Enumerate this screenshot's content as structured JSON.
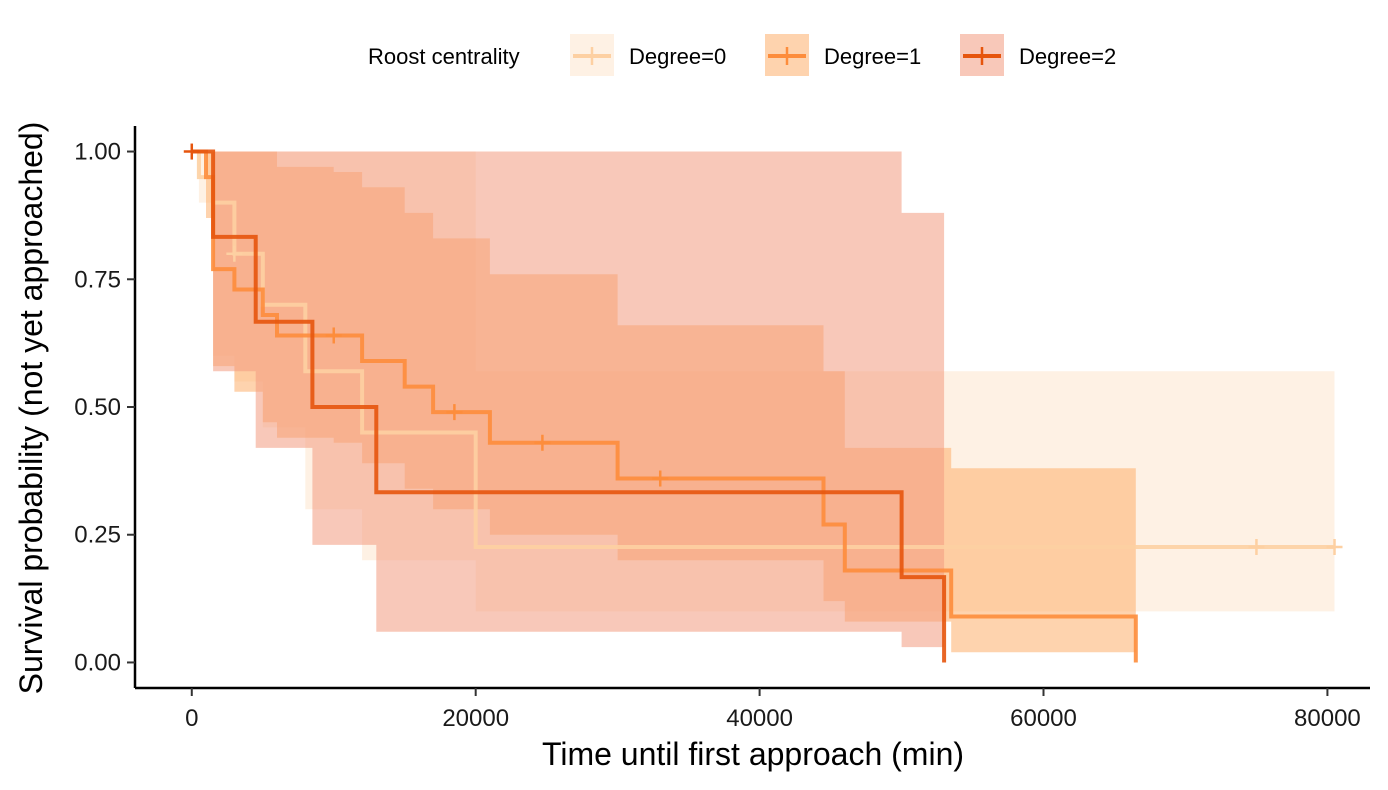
{
  "chart_data": {
    "type": "line",
    "subtype": "kaplan-meier survival curve with confidence bands",
    "xlabel": "Time until first approach (min)",
    "ylabel": "Survival probability (not yet approached)",
    "xlim": [
      -4000,
      83000
    ],
    "ylim": [
      -0.05,
      1.05
    ],
    "xticks": [
      0,
      20000,
      40000,
      60000,
      80000
    ],
    "xtick_labels": [
      "0",
      "20000",
      "40000",
      "60000",
      "80000"
    ],
    "yticks": [
      0,
      0.25,
      0.5,
      0.75,
      1.0
    ],
    "ytick_labels": [
      "0.00",
      "0.25",
      "0.50",
      "0.75",
      "1.00"
    ],
    "grid": false,
    "legend": {
      "title": "Roost centrality",
      "position": "top"
    },
    "series": [
      {
        "name": "Degree=0",
        "color": "#fdd0a2",
        "band_color": "#fee6ce",
        "step_x": [
          0,
          500,
          1500,
          3000,
          5000,
          8000,
          12000,
          20000,
          80500
        ],
        "step_y": [
          1.0,
          0.95,
          0.9,
          0.8,
          0.7,
          0.57,
          0.45,
          0.226,
          0.226
        ],
        "upper": [
          1.0,
          1.0,
          1.0,
          1.0,
          1.0,
          1.0,
          1.0,
          0.57,
          0.57
        ],
        "lower": [
          1.0,
          0.9,
          0.6,
          0.55,
          0.46,
          0.3,
          0.2,
          0.1,
          0.1
        ],
        "censor_x": [
          3000,
          75000,
          80500
        ],
        "censor_y": [
          0.8,
          0.226,
          0.226
        ]
      },
      {
        "name": "Degree=1",
        "color": "#fd8d3c",
        "band_color": "#fdae6b",
        "step_x": [
          0,
          1000,
          1500,
          3000,
          5000,
          6000,
          10000,
          12000,
          15000,
          17000,
          21000,
          30000,
          44500,
          46000,
          53500,
          66500
        ],
        "step_y": [
          1.0,
          0.95,
          0.77,
          0.73,
          0.68,
          0.64,
          0.64,
          0.59,
          0.54,
          0.49,
          0.43,
          0.36,
          0.27,
          0.18,
          0.09,
          0.0
        ],
        "upper": [
          1.0,
          1.0,
          1.0,
          1.0,
          1.0,
          0.97,
          0.96,
          0.93,
          0.88,
          0.83,
          0.76,
          0.66,
          0.57,
          0.42,
          0.38,
          0.38
        ],
        "lower": [
          1.0,
          0.87,
          0.58,
          0.53,
          0.47,
          0.44,
          0.43,
          0.39,
          0.34,
          0.3,
          0.25,
          0.2,
          0.12,
          0.08,
          0.02,
          0.02
        ],
        "censor_x": [
          10000,
          18500,
          24700,
          33000
        ],
        "censor_y": [
          0.64,
          0.49,
          0.43,
          0.36
        ]
      },
      {
        "name": "Degree=2",
        "color": "#e6550d",
        "band_color": "#f29a80",
        "step_x": [
          0,
          1500,
          4500,
          8500,
          13000,
          46000,
          50000,
          53000
        ],
        "step_y": [
          1.0,
          0.833,
          0.667,
          0.5,
          0.333,
          0.333,
          0.167,
          0.0
        ],
        "upper": [
          1.0,
          1.0,
          1.0,
          1.0,
          1.0,
          1.0,
          0.88,
          0.88
        ],
        "lower": [
          1.0,
          0.57,
          0.42,
          0.23,
          0.06,
          0.06,
          0.03,
          0.03
        ],
        "censor_x": [
          0
        ],
        "censor_y": [
          1.0
        ]
      }
    ]
  }
}
